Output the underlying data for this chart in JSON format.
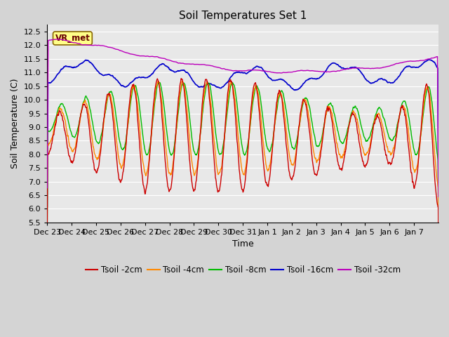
{
  "title": "Soil Temperatures Set 1",
  "xlabel": "Time",
  "ylabel": "Soil Temperature (C)",
  "ylim": [
    5.5,
    12.75
  ],
  "yticks": [
    5.5,
    6.0,
    6.5,
    7.0,
    7.5,
    8.0,
    8.5,
    9.0,
    9.5,
    10.0,
    10.5,
    11.0,
    11.5,
    12.0,
    12.5
  ],
  "xtick_labels": [
    "Dec 23",
    "Dec 24",
    "Dec 25",
    "Dec 26",
    "Dec 27",
    "Dec 28",
    "Dec 29",
    "Dec 30",
    "Dec 31",
    "Jan 1",
    "Jan 2",
    "Jan 3",
    "Jan 4",
    "Jan 5",
    "Jan 6",
    "Jan 7"
  ],
  "series_colors": [
    "#cc0000",
    "#ff8800",
    "#00bb00",
    "#0000cc",
    "#bb00bb"
  ],
  "series_labels": [
    "Tsoil -2cm",
    "Tsoil -4cm",
    "Tsoil -8cm",
    "Tsoil -16cm",
    "Tsoil -32cm"
  ],
  "annotation_text": "VR_met",
  "annotation_box_color": "#ffff88",
  "annotation_box_edge": "#886600",
  "fig_bg_color": "#d4d4d4",
  "plot_bg_color": "#e8e8e8",
  "grid_color": "#ffffff",
  "title_fontsize": 11,
  "axis_label_fontsize": 9,
  "tick_fontsize": 8,
  "legend_fontsize": 8.5
}
